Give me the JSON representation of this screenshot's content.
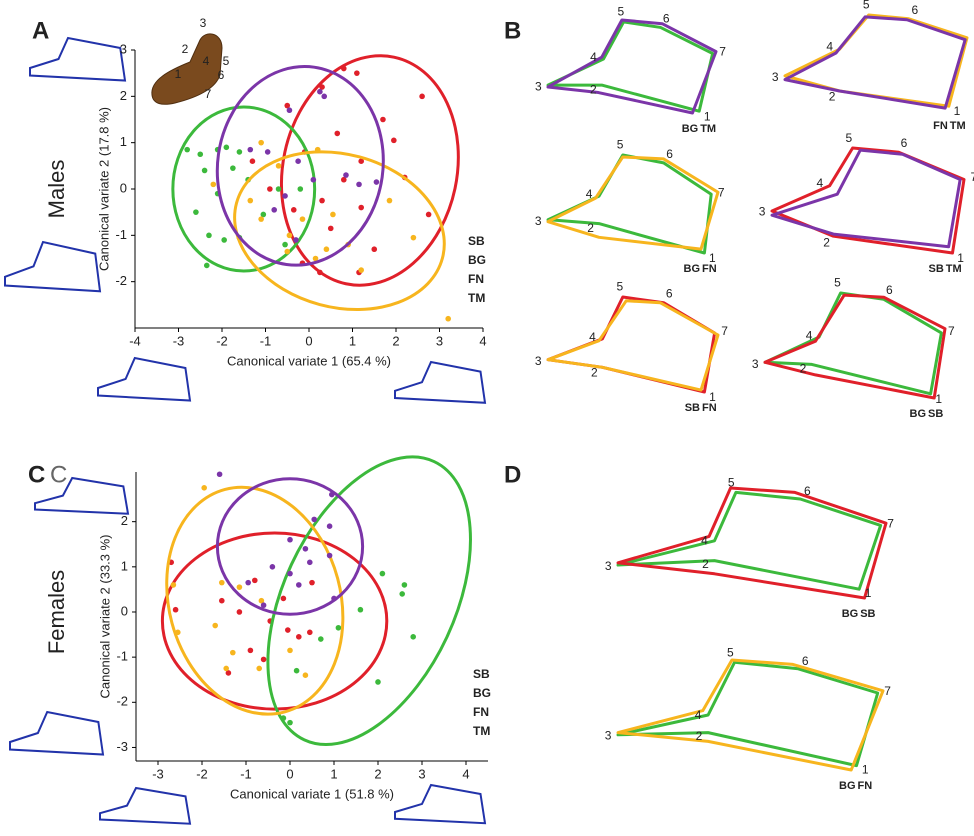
{
  "panel_labels": [
    "A",
    "B",
    "C",
    "C",
    "D"
  ],
  "landmark_labels": [
    "1",
    "2",
    "3",
    "4",
    "5",
    "6",
    "7"
  ],
  "chart_data": [
    {
      "type": "scatter",
      "row_label": "Males",
      "x_label": "Canonical variate 1 (65.4 %)",
      "y_label": "Canonical variate 2 (17.8 %)",
      "xlim": [
        -4,
        4
      ],
      "ylim": [
        -3,
        3
      ],
      "xticks": [
        -4,
        -3,
        -2,
        -1,
        0,
        1,
        2,
        3,
        4
      ],
      "yticks": [
        -2,
        -1,
        0,
        1,
        2,
        3
      ],
      "legend": "lower right",
      "series": [
        {
          "name": "SB",
          "color": "#e0202a",
          "x": [
            0.8,
            1.1,
            0.3,
            2.6,
            -0.5,
            1.7,
            0.65,
            1.95,
            -0.1,
            1.2,
            0.8,
            2.2,
            -0.9,
            0.3,
            -0.35,
            1.2,
            2.75,
            0.5,
            1.5,
            -0.15,
            1.15,
            0.25,
            -1.3
          ],
          "values": [
            2.6,
            2.5,
            2.2,
            2.0,
            1.8,
            1.5,
            1.2,
            1.05,
            0.8,
            0.6,
            0.2,
            0.25,
            0,
            -0.25,
            -0.45,
            -0.4,
            -0.55,
            -0.85,
            -1.3,
            -1.6,
            -1.8,
            -1.8,
            0.6
          ],
          "ellipse": {
            "cx": 1.4,
            "cy": 0.4,
            "rx": 2.0,
            "ry": 2.5,
            "angle": 12
          }
        },
        {
          "name": "BG",
          "color": "#3cb93c",
          "x": [
            -2.8,
            -2.5,
            -2.1,
            -1.9,
            -1.6,
            -2.4,
            -1.75,
            -1.4,
            -0.7,
            -0.2,
            -2.6,
            -2.1,
            -1.05,
            -2.3,
            -1.95,
            -1.6,
            -2.35,
            -0.55
          ],
          "values": [
            0.85,
            0.75,
            0.85,
            0.9,
            0.8,
            0.4,
            0.45,
            0.2,
            0,
            0,
            -0.5,
            -0.1,
            -0.55,
            -1.0,
            -1.1,
            -1.05,
            -1.65,
            -1.2
          ],
          "ellipse": {
            "cx": -1.5,
            "cy": 0,
            "rx": 1.63,
            "ry": 1.77,
            "angle": 0
          }
        },
        {
          "name": "FN",
          "color": "#f7b51e",
          "x": [
            0.2,
            -1.1,
            -0.7,
            -2.2,
            -1.35,
            -1.1,
            -0.45,
            -0.15,
            0.55,
            0.9,
            0.4,
            0.15,
            1.2,
            2.4,
            1.85,
            3.2,
            -0.5
          ],
          "values": [
            0.85,
            1.0,
            0.5,
            0.1,
            -0.25,
            -0.65,
            -1.0,
            -0.65,
            -0.55,
            -1.2,
            -1.3,
            -1.5,
            -1.75,
            -1.05,
            -0.25,
            -2.8,
            -1.35
          ],
          "ellipse": {
            "cx": 0.7,
            "cy": -0.9,
            "rx": 2.45,
            "ry": 1.65,
            "angle": 15
          }
        },
        {
          "name": "TM",
          "color": "#7b35a8",
          "x": [
            0.25,
            0.35,
            -0.45,
            -1.35,
            -0.95,
            -0.25,
            0.85,
            1.15,
            1.55,
            0.1,
            -0.55,
            -0.8,
            -0.3
          ],
          "values": [
            2.1,
            2.0,
            1.7,
            0.85,
            0.8,
            0.6,
            0.3,
            0.1,
            0.15,
            0.2,
            -0.15,
            -0.45,
            -1.1
          ],
          "ellipse": {
            "cx": -0.2,
            "cy": 0.5,
            "rx": 1.9,
            "ry": 2.15,
            "angle": 8
          }
        }
      ]
    },
    {
      "type": "scatter",
      "row_label": "Females",
      "x_label": "Canonical variate 1 (51.8 %)",
      "y_label": "Canonical variate 2 (33.3 %)",
      "xlim": [
        -3.5,
        4.5
      ],
      "ylim": [
        -3.3,
        3.1
      ],
      "xticks": [
        -3,
        -2,
        -1,
        0,
        1,
        2,
        3,
        4
      ],
      "yticks": [
        -3,
        -2,
        -1,
        0,
        1,
        2
      ],
      "legend": "lower right",
      "series": [
        {
          "name": "SB",
          "color": "#e0202a",
          "x": [
            -2.7,
            -2.6,
            -1.55,
            -1.15,
            -0.8,
            -0.45,
            -0.05,
            0.2,
            0.45,
            -0.15,
            0.5,
            -0.9,
            -1.4,
            -0.6
          ],
          "values": [
            1.1,
            0.05,
            0.25,
            0,
            0.7,
            -0.2,
            -0.4,
            -0.55,
            -0.45,
            0.3,
            0.65,
            -0.85,
            -1.35,
            -1.05
          ],
          "ellipse": {
            "cx": -0.35,
            "cy": -0.2,
            "rx": 2.55,
            "ry": 1.95,
            "angle": 0
          }
        },
        {
          "name": "BG",
          "color": "#3cb93c",
          "x": [
            2.6,
            2.55,
            2.8,
            2.1,
            1.6,
            1.1,
            2.0,
            0.7,
            0,
            -0.15,
            0.15
          ],
          "values": [
            0.6,
            0.4,
            -0.55,
            0.85,
            0.05,
            -0.35,
            -1.55,
            -0.6,
            -2.45,
            -2.35,
            -1.3
          ],
          "ellipse": {
            "cx": 1.8,
            "cy": 0.25,
            "rx": 1.95,
            "ry": 3.4,
            "angle": 25
          }
        },
        {
          "name": "FN",
          "color": "#f7b51e",
          "x": [
            -1.95,
            -2.65,
            -2.55,
            -1.55,
            -1.15,
            -1.7,
            -1.3,
            -1.45,
            -0.65,
            0,
            0.35,
            -0.7
          ],
          "values": [
            2.75,
            0.6,
            -0.45,
            0.65,
            0.55,
            -0.3,
            -0.9,
            -1.25,
            0.25,
            -0.85,
            -1.4,
            -1.25
          ],
          "ellipse": {
            "cx": -0.8,
            "cy": 0.25,
            "rx": 1.95,
            "ry": 2.55,
            "angle": -15
          }
        },
        {
          "name": "TM",
          "color": "#7b35a8",
          "x": [
            -1.6,
            0.95,
            0.55,
            0.9,
            0,
            0.35,
            -0.4,
            0,
            0.45,
            0.9,
            0.2,
            -0.95,
            -0.6,
            1.0
          ],
          "values": [
            3.05,
            2.6,
            2.05,
            1.9,
            1.6,
            1.4,
            1.0,
            0.85,
            1.1,
            1.25,
            0.6,
            0.65,
            0.15,
            0.3
          ],
          "ellipse": {
            "cx": 0,
            "cy": 1.45,
            "rx": 1.65,
            "ry": 1.5,
            "angle": 0
          }
        }
      ]
    }
  ],
  "panel_B": [
    {
      "outlines": [
        {
          "group": "BG",
          "color": "#3cb93c",
          "points": [
            [
              90,
              98
            ],
            [
              32,
              70
            ],
            [
              0,
              70
            ],
            [
              33,
              42
            ],
            [
              45,
              2
            ],
            [
              67,
              8
            ],
            [
              98,
              36
            ]
          ]
        },
        {
          "group": "TM",
          "color": "#7b35a8",
          "points": [
            [
              86,
              100
            ],
            [
              30,
              78
            ],
            [
              0,
              72
            ],
            [
              32,
              40
            ],
            [
              44,
              0
            ],
            [
              68,
              4
            ],
            [
              100,
              34
            ]
          ]
        }
      ]
    },
    {
      "outlines": [
        {
          "group": "FN",
          "color": "#f7b51e",
          "points": [
            [
              90,
              96
            ],
            [
              30,
              80
            ],
            [
              0,
              64
            ],
            [
              30,
              36
            ],
            [
              46,
              0
            ],
            [
              68,
              4
            ],
            [
              100,
              24
            ]
          ]
        },
        {
          "group": "TM",
          "color": "#7b35a8",
          "points": [
            [
              88,
              98
            ],
            [
              30,
              80
            ],
            [
              0,
              68
            ],
            [
              28,
              40
            ],
            [
              44,
              2
            ],
            [
              67,
              5
            ],
            [
              99,
              26
            ]
          ]
        }
      ]
    },
    {
      "outlines": [
        {
          "group": "BG",
          "color": "#3cb93c",
          "points": [
            [
              92,
              100
            ],
            [
              30,
              70
            ],
            [
              0,
              66
            ],
            [
              30,
              42
            ],
            [
              44,
              0
            ],
            [
              68,
              8
            ],
            [
              96,
              40
            ]
          ]
        },
        {
          "group": "FN",
          "color": "#f7b51e",
          "points": [
            [
              90,
              96
            ],
            [
              30,
              84
            ],
            [
              0,
              68
            ],
            [
              28,
              44
            ],
            [
              44,
              2
            ],
            [
              68,
              4
            ],
            [
              100,
              38
            ]
          ]
        }
      ]
    },
    {
      "outlines": [
        {
          "group": "SB",
          "color": "#e0202a",
          "points": [
            [
              94,
              100
            ],
            [
              32,
              84
            ],
            [
              0,
              60
            ],
            [
              30,
              36
            ],
            [
              42,
              0
            ],
            [
              66,
              4
            ],
            [
              100,
              30
            ]
          ]
        },
        {
          "group": "TM",
          "color": "#7b35a8",
          "points": [
            [
              92,
              94
            ],
            [
              32,
              82
            ],
            [
              0,
              64
            ],
            [
              34,
              44
            ],
            [
              46,
              2
            ],
            [
              68,
              6
            ],
            [
              98,
              30
            ]
          ]
        }
      ]
    },
    {
      "outlines": [
        {
          "group": "SB",
          "color": "#e0202a",
          "points": [
            [
              92,
              100
            ],
            [
              32,
              74
            ],
            [
              0,
              66
            ],
            [
              32,
              44
            ],
            [
              44,
              0
            ],
            [
              68,
              6
            ],
            [
              98,
              38
            ]
          ]
        },
        {
          "group": "FN",
          "color": "#f7b51e",
          "points": [
            [
              90,
              98
            ],
            [
              32,
              74
            ],
            [
              0,
              66
            ],
            [
              30,
              46
            ],
            [
              46,
              4
            ],
            [
              66,
              6
            ],
            [
              100,
              40
            ]
          ]
        }
      ]
    },
    {
      "outlines": [
        {
          "group": "BG",
          "color": "#3cb93c",
          "points": [
            [
              92,
              96
            ],
            [
              26,
              68
            ],
            [
              0,
              66
            ],
            [
              30,
              42
            ],
            [
              42,
              0
            ],
            [
              66,
              6
            ],
            [
              98,
              38
            ]
          ]
        },
        {
          "group": "SB",
          "color": "#e0202a",
          "points": [
            [
              94,
              100
            ],
            [
              28,
              78
            ],
            [
              0,
              66
            ],
            [
              28,
              46
            ],
            [
              44,
              2
            ],
            [
              66,
              4
            ],
            [
              100,
              34
            ]
          ]
        }
      ]
    }
  ],
  "panel_D": [
    {
      "outlines": [
        {
          "group": "BG",
          "color": "#3cb93c",
          "points": [
            [
              90,
              92
            ],
            [
              36,
              66
            ],
            [
              0,
              70
            ],
            [
              36,
              48
            ],
            [
              44,
              4
            ],
            [
              68,
              10
            ],
            [
              98,
              34
            ]
          ]
        },
        {
          "group": "SB",
          "color": "#e0202a",
          "points": [
            [
              92,
              100
            ],
            [
              36,
              78
            ],
            [
              0,
              68
            ],
            [
              34,
              44
            ],
            [
              42,
              0
            ],
            [
              66,
              4
            ],
            [
              100,
              32
            ]
          ]
        }
      ]
    },
    {
      "outlines": [
        {
          "group": "BG",
          "color": "#3cb93c",
          "points": [
            [
              90,
              96
            ],
            [
              34,
              66
            ],
            [
              0,
              68
            ],
            [
              34,
              50
            ],
            [
              44,
              2
            ],
            [
              68,
              8
            ],
            [
              98,
              30
            ]
          ]
        },
        {
          "group": "FN",
          "color": "#f7b51e",
          "points": [
            [
              88,
              100
            ],
            [
              34,
              74
            ],
            [
              0,
              66
            ],
            [
              32,
              46
            ],
            [
              43,
              0
            ],
            [
              66,
              4
            ],
            [
              100,
              28
            ]
          ]
        }
      ]
    }
  ]
}
